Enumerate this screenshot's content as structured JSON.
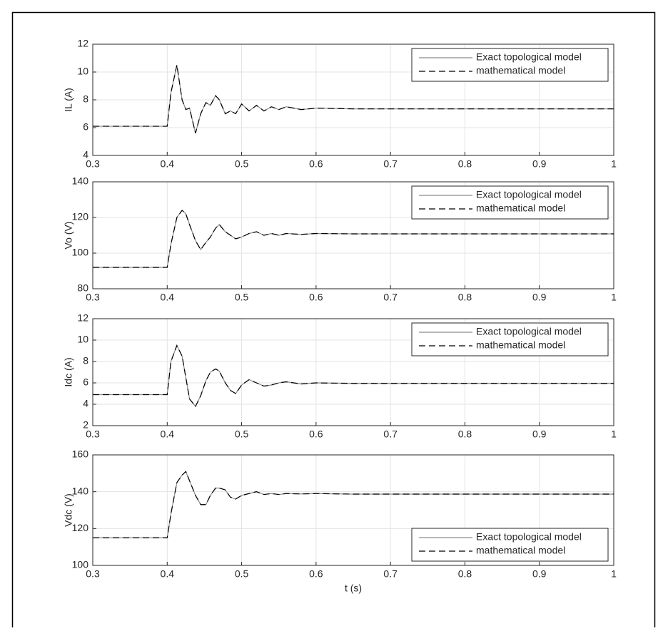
{
  "chart_data": [
    {
      "type": "line",
      "ylabel": "IL (A)",
      "xlim": [
        0.3,
        1
      ],
      "ylim": [
        4,
        12
      ],
      "xticks": [
        0.3,
        0.4,
        0.5,
        0.6,
        0.7,
        0.8,
        0.9,
        1
      ],
      "yticks": [
        4,
        6,
        8,
        10,
        12
      ],
      "grid": true,
      "legend": "upper right",
      "x": [
        0.3,
        0.4,
        0.405,
        0.413,
        0.42,
        0.425,
        0.43,
        0.438,
        0.445,
        0.452,
        0.458,
        0.465,
        0.47,
        0.478,
        0.485,
        0.492,
        0.5,
        0.51,
        0.52,
        0.53,
        0.54,
        0.55,
        0.56,
        0.58,
        0.6,
        0.65,
        0.7,
        1.0
      ],
      "series": [
        {
          "name": "Exact topological model",
          "color": "#8c8c8c",
          "linestyle": "solid",
          "values": [
            6.1,
            6.1,
            8.5,
            10.5,
            8.0,
            7.3,
            7.4,
            5.6,
            7.0,
            7.8,
            7.6,
            8.3,
            8.0,
            7.0,
            7.2,
            7.0,
            7.7,
            7.2,
            7.6,
            7.2,
            7.5,
            7.3,
            7.5,
            7.3,
            7.4,
            7.35,
            7.35,
            7.35
          ]
        },
        {
          "name": "mathematical model",
          "color": "#000000",
          "linestyle": "dashed",
          "values": [
            6.1,
            6.1,
            8.5,
            10.5,
            8.0,
            7.3,
            7.4,
            5.6,
            7.0,
            7.8,
            7.6,
            8.3,
            8.0,
            7.0,
            7.2,
            7.0,
            7.7,
            7.2,
            7.6,
            7.2,
            7.5,
            7.3,
            7.5,
            7.3,
            7.4,
            7.35,
            7.35,
            7.35
          ]
        }
      ]
    },
    {
      "type": "line",
      "ylabel": "Vo (V)",
      "xlim": [
        0.3,
        1
      ],
      "ylim": [
        80,
        140
      ],
      "xticks": [
        0.3,
        0.4,
        0.5,
        0.6,
        0.7,
        0.8,
        0.9,
        1
      ],
      "yticks": [
        80,
        100,
        120,
        140
      ],
      "grid": true,
      "legend": "upper right",
      "x": [
        0.3,
        0.4,
        0.405,
        0.413,
        0.42,
        0.425,
        0.43,
        0.438,
        0.445,
        0.452,
        0.458,
        0.465,
        0.47,
        0.478,
        0.485,
        0.492,
        0.5,
        0.51,
        0.52,
        0.53,
        0.54,
        0.55,
        0.56,
        0.58,
        0.6,
        0.65,
        0.7,
        1.0
      ],
      "series": [
        {
          "name": "Exact topological model",
          "color": "#8c8c8c",
          "linestyle": "solid",
          "values": [
            92,
            92,
            105,
            120,
            124,
            122,
            116,
            107,
            102,
            106,
            109,
            114,
            116,
            112,
            110,
            108,
            109,
            111,
            112,
            110,
            111,
            110,
            111,
            110.5,
            111,
            110.8,
            110.8,
            110.8
          ]
        },
        {
          "name": "mathematical model",
          "color": "#000000",
          "linestyle": "dashed",
          "values": [
            92,
            92,
            105,
            120,
            124,
            122,
            116,
            107,
            102,
            106,
            109,
            114,
            116,
            112,
            110,
            108,
            109,
            111,
            112,
            110,
            111,
            110,
            111,
            110.5,
            111,
            110.8,
            110.8,
            110.8
          ]
        }
      ]
    },
    {
      "type": "line",
      "ylabel": "Idc (A)",
      "xlim": [
        0.3,
        1
      ],
      "ylim": [
        2,
        12
      ],
      "xticks": [
        0.3,
        0.4,
        0.5,
        0.6,
        0.7,
        0.8,
        0.9,
        1
      ],
      "yticks": [
        2,
        4,
        6,
        8,
        10,
        12
      ],
      "grid": true,
      "legend": "upper right",
      "x": [
        0.3,
        0.4,
        0.405,
        0.413,
        0.42,
        0.425,
        0.43,
        0.438,
        0.445,
        0.452,
        0.458,
        0.465,
        0.47,
        0.478,
        0.485,
        0.492,
        0.5,
        0.51,
        0.52,
        0.53,
        0.54,
        0.55,
        0.56,
        0.58,
        0.6,
        0.65,
        0.7,
        1.0
      ],
      "series": [
        {
          "name": "Exact topological model",
          "color": "#8c8c8c",
          "linestyle": "solid",
          "values": [
            4.9,
            4.9,
            8.0,
            9.5,
            8.5,
            6.5,
            4.5,
            3.8,
            4.8,
            6.2,
            7.0,
            7.3,
            7.1,
            6.0,
            5.3,
            5.0,
            5.8,
            6.3,
            6.0,
            5.7,
            5.8,
            6.0,
            6.1,
            5.9,
            6.0,
            5.95,
            5.95,
            5.95
          ]
        },
        {
          "name": "mathematical model",
          "color": "#000000",
          "linestyle": "dashed",
          "values": [
            4.9,
            4.9,
            8.0,
            9.5,
            8.5,
            6.5,
            4.5,
            3.8,
            4.8,
            6.2,
            7.0,
            7.3,
            7.1,
            6.0,
            5.3,
            5.0,
            5.8,
            6.3,
            6.0,
            5.7,
            5.8,
            6.0,
            6.1,
            5.9,
            6.0,
            5.95,
            5.95,
            5.95
          ]
        }
      ]
    },
    {
      "type": "line",
      "ylabel": "Vdc (V)",
      "xlabel": "t (s)",
      "xlim": [
        0.3,
        1
      ],
      "ylim": [
        100,
        160
      ],
      "xticks": [
        0.3,
        0.4,
        0.5,
        0.6,
        0.7,
        0.8,
        0.9,
        1
      ],
      "yticks": [
        100,
        120,
        140,
        160
      ],
      "grid": true,
      "legend": "lower right",
      "x": [
        0.3,
        0.4,
        0.405,
        0.413,
        0.42,
        0.425,
        0.43,
        0.438,
        0.445,
        0.452,
        0.458,
        0.465,
        0.47,
        0.478,
        0.485,
        0.492,
        0.5,
        0.51,
        0.52,
        0.53,
        0.54,
        0.55,
        0.56,
        0.58,
        0.6,
        0.65,
        0.7,
        1.0
      ],
      "series": [
        {
          "name": "Exact topological model",
          "color": "#8c8c8c",
          "linestyle": "solid",
          "values": [
            115,
            115,
            128,
            145,
            149,
            151,
            146,
            138,
            133,
            133,
            138,
            142,
            142,
            141,
            137,
            136,
            138,
            139,
            140,
            138.5,
            139,
            138.5,
            139,
            138.8,
            139,
            138.7,
            138.7,
            138.7
          ]
        },
        {
          "name": "mathematical model",
          "color": "#000000",
          "linestyle": "dashed",
          "values": [
            115,
            115,
            128,
            145,
            149,
            151,
            146,
            138,
            133,
            133,
            138,
            142,
            142,
            141,
            137,
            136,
            138,
            139,
            140,
            138.5,
            139,
            138.5,
            139,
            138.8,
            139,
            138.7,
            138.7,
            138.7
          ]
        }
      ]
    }
  ]
}
